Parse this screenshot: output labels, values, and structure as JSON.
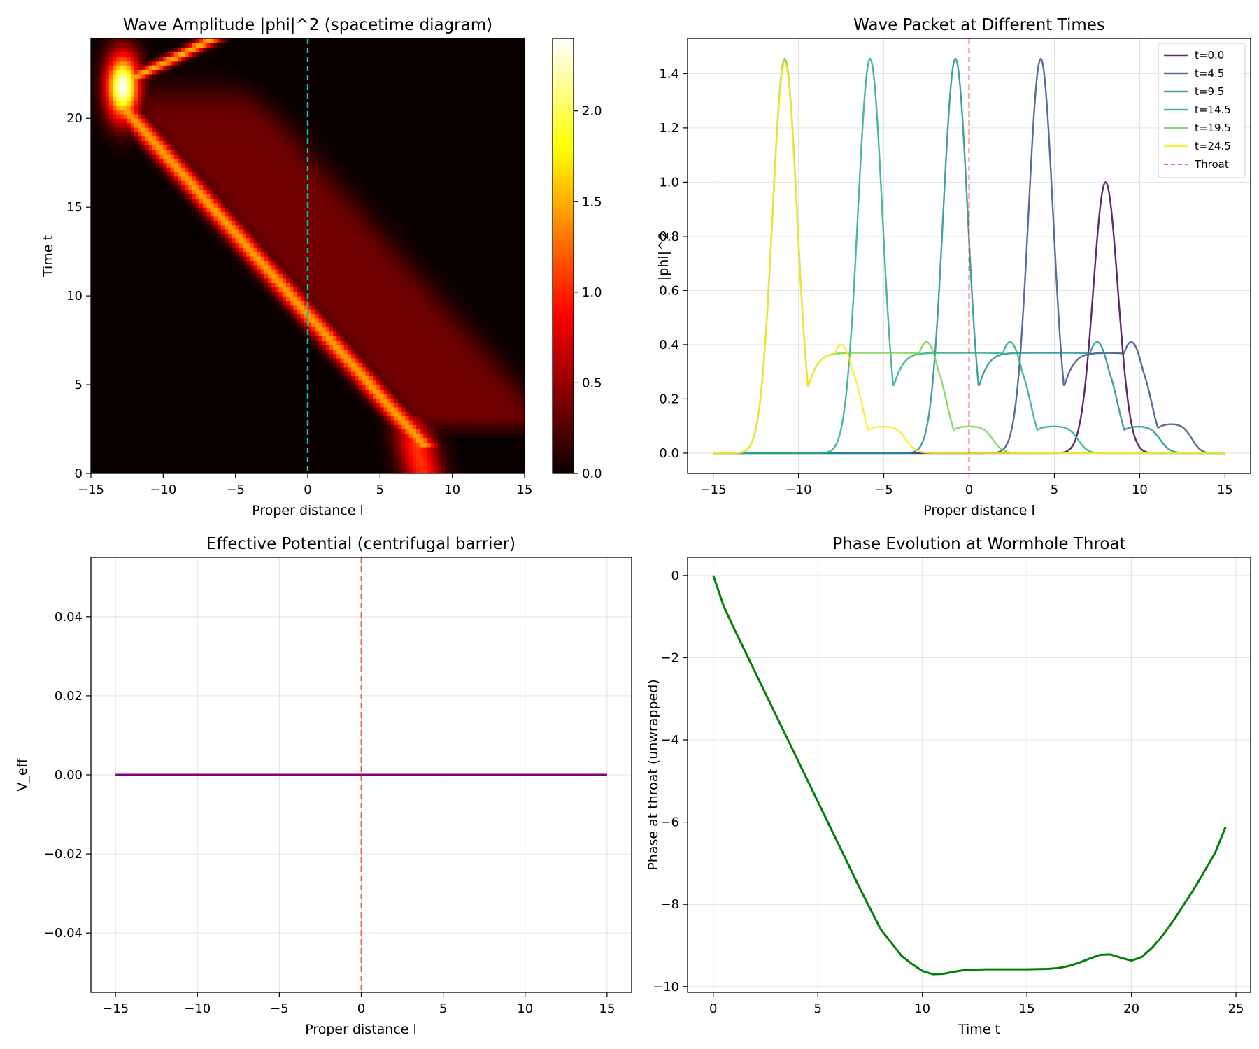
{
  "colors": {
    "hot": [
      "#0b0000",
      "#ff0000",
      "#ffff00",
      "#ffffff"
    ],
    "throat_cyan": "#00bfbf",
    "throat_red": "#ff0000",
    "potential": "#800080",
    "phase": "#008000",
    "viridis": [
      "#440154",
      "#3b528b",
      "#21918c",
      "#27ad81",
      "#7ad151",
      "#fde725"
    ]
  },
  "chart_data": [
    {
      "type": "heatmap",
      "title": "Wave Amplitude |phi|^2 (spacetime diagram)",
      "xlabel": "Proper distance l",
      "ylabel": "Time t",
      "xlim": [
        -15,
        15
      ],
      "ylim": [
        0,
        24.5
      ],
      "xticks": [
        -15,
        -10,
        -5,
        0,
        5,
        10,
        15
      ],
      "yticks": [
        0,
        5,
        10,
        15,
        20
      ],
      "colormap": "hot",
      "colorbar": {
        "range": [
          0,
          2.4
        ],
        "ticks": [
          0.0,
          0.5,
          1.0,
          1.5,
          2.0
        ],
        "tick_labels": [
          "0.0",
          "0.5",
          "1.0",
          "1.5",
          "2.0"
        ]
      },
      "throat_line": {
        "x": 0,
        "style": "dashed",
        "color": "cyan"
      },
      "features": {
        "initial_packet": {
          "center": 8,
          "t_range": [
            0,
            2
          ],
          "peak": 1.0
        },
        "main_ridge": {
          "from": [
            7.4,
            2.2
          ],
          "to": [
            -12.3,
            20.2
          ],
          "peak": 1.45
        },
        "reflection": {
          "point": [
            -12.8,
            21.8
          ],
          "peak": 2.4
        },
        "tail_band": {
          "offset_from_ridge": [
            0.5,
            10
          ],
          "level": 0.37
        }
      }
    },
    {
      "type": "line",
      "title": "Wave Packet at Different Times",
      "xlabel": "Proper distance l",
      "ylabel": "|phi|^2",
      "xlim": [
        -16.5,
        16.5
      ],
      "ylim": [
        -0.075,
        1.53
      ],
      "xticks": [
        -15,
        -10,
        -5,
        0,
        5,
        10,
        15
      ],
      "yticks": [
        0.0,
        0.2,
        0.4,
        0.6,
        0.8,
        1.0,
        1.2,
        1.4
      ],
      "ytick_labels": [
        "0.0",
        "0.2",
        "0.4",
        "0.6",
        "0.8",
        "1.0",
        "1.2",
        "1.4"
      ],
      "grid": true,
      "legend": "top-right",
      "series": [
        {
          "name": "t=0.0",
          "peak_x": 8.0,
          "peak_y": 1.0,
          "tail": null
        },
        {
          "name": "t=4.5",
          "peak_x": 4.2,
          "peak_y": 1.455,
          "tail": {
            "from": 4.2,
            "to": 13.8,
            "level": 0.37,
            "bump_x": 9.5,
            "bump_y": 0.41,
            "step_x": 12.5,
            "step_y": 0.11
          }
        },
        {
          "name": "t=9.5",
          "peak_x": -0.8,
          "peak_y": 1.455,
          "tail": {
            "from": -0.8,
            "to": 13.8,
            "level": 0.37,
            "bump_x": 7.5,
            "bump_y": 0.41,
            "step_x": 10.6,
            "step_y": 0.1
          }
        },
        {
          "name": "t=14.5",
          "peak_x": -5.8,
          "peak_y": 1.455,
          "tail": {
            "from": -5.8,
            "to": 7.5,
            "level": 0.37,
            "bump_x": 2.4,
            "bump_y": 0.41,
            "step_x": 5.8,
            "step_y": 0.1
          }
        },
        {
          "name": "t=19.5",
          "peak_x": -10.8,
          "peak_y": 1.455,
          "tail": {
            "from": -10.8,
            "to": 3.0,
            "level": 0.37,
            "bump_x": -2.5,
            "bump_y": 0.41,
            "step_x": 0.8,
            "step_y": 0.1
          }
        },
        {
          "name": "t=24.5",
          "peak_x": -10.8,
          "peak_y": 1.44,
          "tail": {
            "from": -10.8,
            "to": -1.5,
            "level": 0.37,
            "bump_x": -7.5,
            "bump_y": 0.4,
            "step_x": -4.3,
            "step_y": 0.1
          }
        }
      ],
      "throat_line": {
        "x": 0,
        "name": "Throat",
        "style": "dashed"
      }
    },
    {
      "type": "line",
      "title": "Effective Potential (centrifugal barrier)",
      "xlabel": "Proper distance l",
      "ylabel": "V_eff",
      "xlim": [
        -16.5,
        16.5
      ],
      "ylim": [
        -0.055,
        0.055
      ],
      "xticks": [
        -15,
        -10,
        -5,
        0,
        5,
        10,
        15
      ],
      "yticks": [
        -0.04,
        -0.02,
        0.0,
        0.02,
        0.04
      ],
      "ytick_labels": [
        "−0.04",
        "−0.02",
        "0.00",
        "0.02",
        "0.04"
      ],
      "grid": true,
      "series": [
        {
          "x": [
            -15,
            15
          ],
          "values": [
            0,
            0
          ]
        }
      ],
      "throat_line": {
        "x": 0,
        "style": "dashed"
      }
    },
    {
      "type": "line",
      "title": "Phase Evolution at Wormhole Throat",
      "xlabel": "Time t",
      "ylabel": "Phase at throat (unwrapped)",
      "xlim": [
        -1.23,
        25.7
      ],
      "ylim": [
        -10.14,
        0.44
      ],
      "xticks": [
        0,
        5,
        10,
        15,
        20,
        25
      ],
      "yticks": [
        0,
        -2,
        -4,
        -6,
        -8,
        -10
      ],
      "grid": true,
      "series": [
        {
          "x": [
            0,
            0.5,
            1,
            2,
            3,
            4,
            5,
            6,
            7,
            8,
            9,
            9.5,
            10,
            10.5,
            11,
            11.5,
            12,
            13,
            14,
            15,
            16,
            16.5,
            17,
            17.5,
            18,
            18.5,
            19,
            19.5,
            20,
            20.5,
            21,
            21.5,
            22,
            23,
            24,
            24.5
          ],
          "values": [
            0,
            -0.75,
            -1.3,
            -2.35,
            -3.4,
            -4.45,
            -5.5,
            -6.55,
            -7.6,
            -8.6,
            -9.25,
            -9.45,
            -9.62,
            -9.7,
            -9.69,
            -9.64,
            -9.6,
            -9.58,
            -9.58,
            -9.58,
            -9.57,
            -9.55,
            -9.5,
            -9.42,
            -9.32,
            -9.23,
            -9.22,
            -9.3,
            -9.37,
            -9.28,
            -9.05,
            -8.75,
            -8.4,
            -7.62,
            -6.75,
            -6.12
          ]
        }
      ]
    }
  ]
}
